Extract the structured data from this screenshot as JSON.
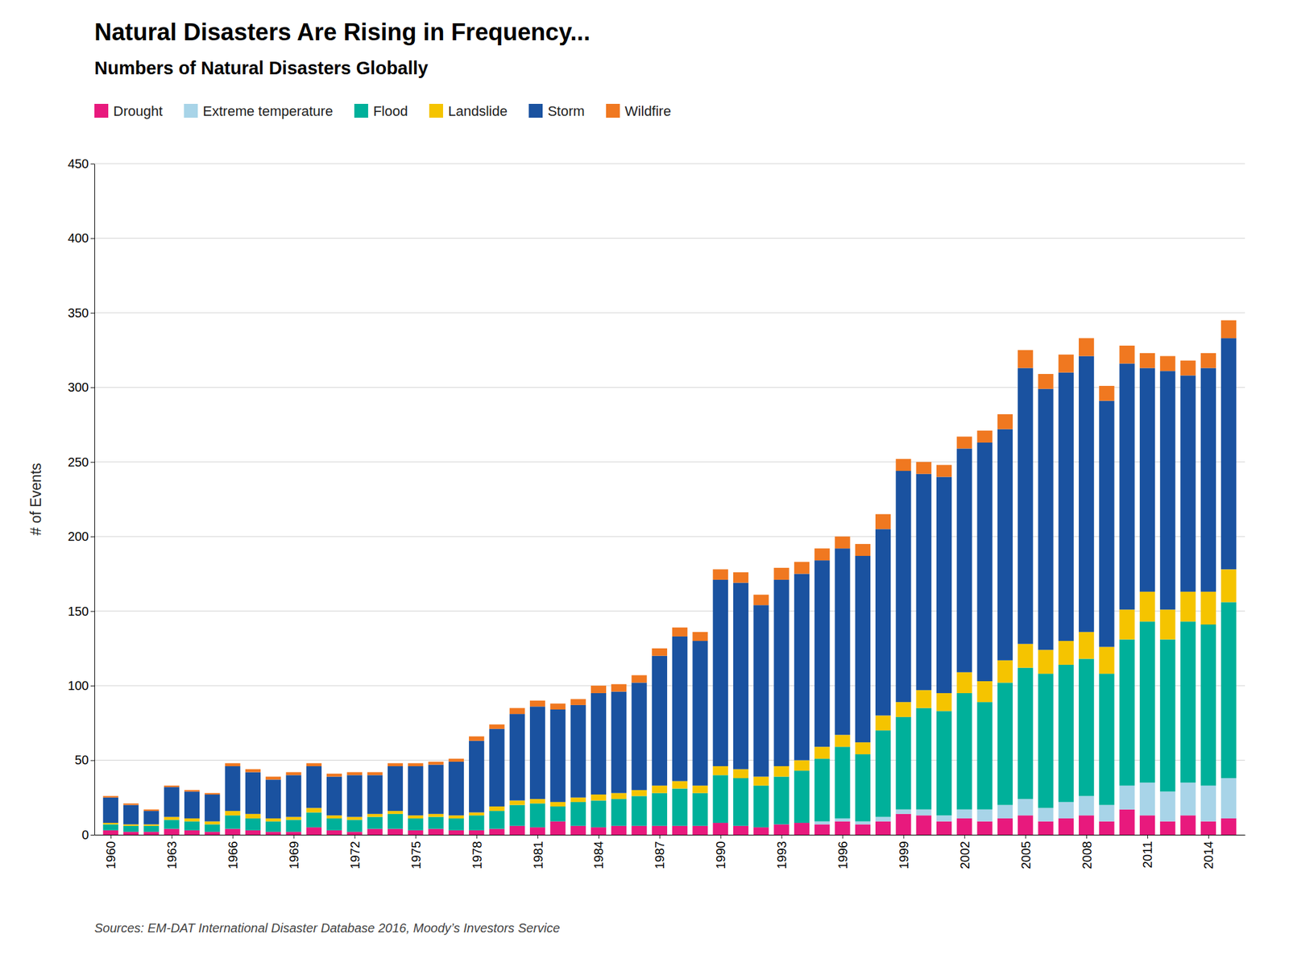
{
  "chart_data": {
    "type": "bar",
    "stacked": true,
    "title": "Natural Disasters Are Rising in Frequency...",
    "subtitle": "Numbers of Natural Disasters Globally",
    "annotations": [
      "Sources: EM-DAT International Disaster Database 2016, Moody’s Investors Service"
    ],
    "ylabel": "# of Events",
    "x": [
      1960,
      1961,
      1962,
      1963,
      1964,
      1965,
      1966,
      1967,
      1968,
      1969,
      1970,
      1971,
      1972,
      1973,
      1974,
      1975,
      1976,
      1977,
      1978,
      1979,
      1980,
      1981,
      1982,
      1983,
      1984,
      1985,
      1986,
      1987,
      1988,
      1989,
      1990,
      1991,
      1992,
      1993,
      1994,
      1995,
      1996,
      1997,
      1998,
      1999,
      2000,
      2001,
      2002,
      2003,
      2004,
      2005,
      2006,
      2007,
      2008,
      2009,
      2010,
      2011,
      2012,
      2013,
      2014,
      2015
    ],
    "xlim": [
      1959.2,
      2015.8
    ],
    "xticks": [
      1960,
      1963,
      1966,
      1969,
      1972,
      1975,
      1978,
      1981,
      1984,
      1987,
      1990,
      1993,
      1996,
      1999,
      2002,
      2005,
      2008,
      2011,
      2014
    ],
    "ylim": [
      0,
      450
    ],
    "yticks": [
      0,
      50,
      100,
      150,
      200,
      250,
      300,
      350,
      400,
      450
    ],
    "grid": true,
    "legend": "top",
    "series": [
      {
        "name": "Drought",
        "color": "#E8197D",
        "values": [
          3,
          2,
          2,
          4,
          3,
          2,
          4,
          3,
          2,
          2,
          5,
          3,
          2,
          4,
          4,
          3,
          4,
          3,
          3,
          4,
          6,
          5,
          9,
          6,
          5,
          6,
          6,
          6,
          6,
          6,
          8,
          6,
          5,
          7,
          8,
          7,
          9,
          7,
          9,
          14,
          13,
          9,
          11,
          9,
          11,
          13,
          9,
          11,
          13,
          9,
          17,
          13,
          9,
          13,
          9,
          11
        ]
      },
      {
        "name": "Extreme temperature",
        "color": "#A8D4E8",
        "values": [
          0,
          0,
          0,
          0,
          0,
          0,
          0,
          0,
          0,
          0,
          0,
          0,
          0,
          0,
          0,
          0,
          0,
          0,
          0,
          0,
          0,
          0,
          0,
          0,
          0,
          0,
          0,
          0,
          0,
          0,
          0,
          0,
          0,
          0,
          0,
          2,
          2,
          2,
          3,
          3,
          4,
          4,
          6,
          8,
          9,
          11,
          9,
          11,
          13,
          11,
          16,
          22,
          20,
          22,
          24,
          27
        ]
      },
      {
        "name": "Flood",
        "color": "#00B09A",
        "values": [
          4,
          4,
          4,
          6,
          6,
          5,
          9,
          8,
          7,
          8,
          10,
          8,
          8,
          8,
          10,
          8,
          8,
          8,
          10,
          12,
          14,
          16,
          10,
          16,
          18,
          18,
          20,
          22,
          25,
          22,
          32,
          32,
          28,
          32,
          35,
          42,
          48,
          45,
          58,
          62,
          68,
          70,
          78,
          72,
          82,
          88,
          90,
          92,
          92,
          88,
          98,
          108,
          102,
          108,
          108,
          118
        ]
      },
      {
        "name": "Landslide",
        "color": "#F5C400",
        "values": [
          1,
          1,
          1,
          2,
          2,
          2,
          3,
          3,
          2,
          2,
          3,
          2,
          2,
          2,
          2,
          2,
          2,
          2,
          2,
          3,
          3,
          3,
          3,
          3,
          4,
          4,
          4,
          5,
          5,
          5,
          6,
          6,
          6,
          7,
          7,
          8,
          8,
          8,
          10,
          10,
          12,
          12,
          14,
          14,
          15,
          16,
          16,
          16,
          18,
          18,
          20,
          20,
          20,
          20,
          22,
          22
        ]
      },
      {
        "name": "Storm",
        "color": "#1A52A0",
        "values": [
          17,
          13,
          9,
          20,
          18,
          18,
          30,
          28,
          26,
          28,
          28,
          26,
          28,
          26,
          30,
          33,
          33,
          36,
          48,
          52,
          58,
          62,
          62,
          62,
          68,
          68,
          72,
          87,
          97,
          97,
          125,
          125,
          115,
          125,
          125,
          125,
          125,
          125,
          125,
          155,
          145,
          145,
          150,
          160,
          155,
          185,
          175,
          180,
          185,
          165,
          165,
          150,
          160,
          145,
          150,
          155
        ]
      },
      {
        "name": "Wildfire",
        "color": "#F07820",
        "values": [
          1,
          1,
          1,
          1,
          1,
          1,
          2,
          2,
          2,
          2,
          2,
          2,
          2,
          2,
          2,
          2,
          2,
          2,
          3,
          3,
          4,
          4,
          4,
          4,
          5,
          5,
          5,
          5,
          6,
          6,
          7,
          7,
          7,
          8,
          8,
          8,
          8,
          8,
          10,
          8,
          8,
          8,
          8,
          8,
          10,
          12,
          10,
          12,
          12,
          10,
          12,
          10,
          10,
          10,
          10,
          12
        ]
      }
    ]
  }
}
